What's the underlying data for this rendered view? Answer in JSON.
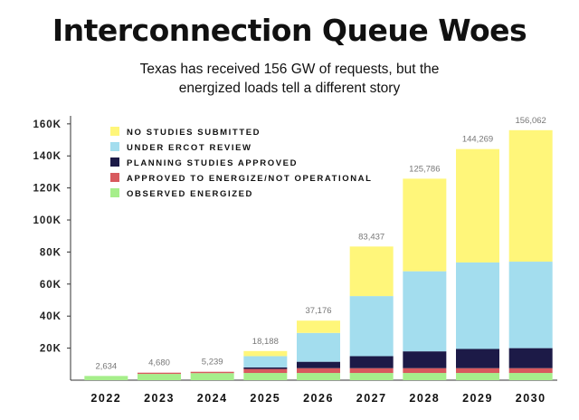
{
  "title": "Interconnection Queue Woes",
  "subtitle": [
    "Texas has received 156 GW of requests, but the",
    "energized loads tell a different story"
  ],
  "colors": {
    "no_studies": "#fff67a",
    "under_review": "#a3ddee",
    "planning_approved": "#1c1a47",
    "approved_not_operational": "#d85a5e",
    "observed_energized": "#a6ee8b"
  },
  "chart_data": {
    "type": "bar",
    "stacked": true,
    "categories": [
      "2022",
      "2023",
      "2024",
      "2025",
      "2026",
      "2027",
      "2028",
      "2029",
      "2030"
    ],
    "series": [
      {
        "name": "OBSERVED ENERGIZED",
        "color": "#a6ee8b",
        "values": [
          2634,
          3900,
          4400,
          4500,
          4500,
          4500,
          4500,
          4500,
          4500
        ]
      },
      {
        "name": "APPROVED TO ENERGIZE/NOT OPERATIONAL",
        "color": "#d85a5e",
        "values": [
          0,
          780,
          839,
          2500,
          3000,
          3000,
          3000,
          3000,
          3000
        ]
      },
      {
        "name": "PLANNING STUDIES APPROVED",
        "color": "#1c1a47",
        "values": [
          0,
          0,
          0,
          1000,
          4000,
          7500,
          10500,
          12000,
          12500
        ]
      },
      {
        "name": "UNDER ERCOT REVIEW",
        "color": "#a3ddee",
        "values": [
          0,
          0,
          0,
          7000,
          18000,
          37500,
          50000,
          54000,
          54000
        ]
      },
      {
        "name": "NO STUDIES SUBMITTED",
        "color": "#fff67a",
        "values": [
          0,
          0,
          0,
          3188,
          7676,
          30937,
          57786,
          70769,
          82062
        ]
      }
    ],
    "totals": [
      "2,634",
      "4,680",
      "5,239",
      "18,188",
      "37,176",
      "83,437",
      "125,786",
      "144,269",
      "156,062"
    ],
    "y_ticks": [
      20000,
      40000,
      60000,
      80000,
      100000,
      120000,
      140000,
      160000
    ],
    "y_tick_labels": [
      "20K",
      "40K",
      "60K",
      "80K",
      "100K",
      "120K",
      "140K",
      "160K"
    ],
    "ylim": [
      0,
      165000
    ],
    "grid": false,
    "legend_position": "top-left",
    "legend_order": [
      "NO STUDIES SUBMITTED",
      "UNDER ERCOT REVIEW",
      "PLANNING STUDIES APPROVED",
      "APPROVED TO ENERGIZE/NOT OPERATIONAL",
      "OBSERVED ENERGIZED"
    ]
  }
}
